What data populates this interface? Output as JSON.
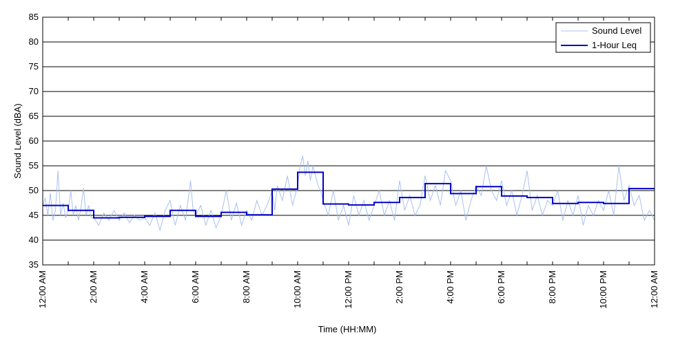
{
  "chart_data": {
    "type": "line",
    "xlabel": "Time (HH:MM)",
    "ylabel": "Sound Level (dBA)",
    "ylim": [
      35,
      85
    ],
    "y_ticks": [
      35,
      40,
      45,
      50,
      55,
      60,
      65,
      70,
      75,
      80,
      85
    ],
    "xlim_hours": [
      0,
      24
    ],
    "x_tick_labels": [
      "12:00 AM",
      "2:00 AM",
      "4:00 AM",
      "6:00 AM",
      "8:00 AM",
      "10:00 AM",
      "12:00 PM",
      "2:00 PM",
      "4:00 PM",
      "6:00 PM",
      "8:00 PM",
      "10:00 PM",
      "12:00 AM"
    ],
    "grid": "horizontal",
    "legend_position": "top-right",
    "series": [
      {
        "name": "Sound Level",
        "color": "#a8c0f0",
        "style": "thin-noisy-line",
        "points_hours_db": [
          [
            0.0,
            47
          ],
          [
            0.1,
            48.5
          ],
          [
            0.2,
            45
          ],
          [
            0.3,
            49.5
          ],
          [
            0.4,
            44
          ],
          [
            0.5,
            46
          ],
          [
            0.6,
            54
          ],
          [
            0.7,
            45
          ],
          [
            0.8,
            47.5
          ],
          [
            0.9,
            44.5
          ],
          [
            1.0,
            46
          ],
          [
            1.1,
            50
          ],
          [
            1.2,
            45
          ],
          [
            1.3,
            47
          ],
          [
            1.4,
            44
          ],
          [
            1.5,
            46.5
          ],
          [
            1.6,
            50.5
          ],
          [
            1.7,
            45
          ],
          [
            1.8,
            47
          ],
          [
            1.9,
            44.5
          ],
          [
            2.0,
            44.5
          ],
          [
            2.2,
            43
          ],
          [
            2.4,
            45.5
          ],
          [
            2.6,
            44
          ],
          [
            2.8,
            46
          ],
          [
            3.0,
            44
          ],
          [
            3.2,
            45.5
          ],
          [
            3.4,
            43.5
          ],
          [
            3.6,
            45
          ],
          [
            3.8,
            44
          ],
          [
            4.0,
            44.5
          ],
          [
            4.2,
            43
          ],
          [
            4.4,
            45.5
          ],
          [
            4.6,
            42
          ],
          [
            4.8,
            46
          ],
          [
            5.0,
            48
          ],
          [
            5.1,
            45
          ],
          [
            5.2,
            43
          ],
          [
            5.4,
            47
          ],
          [
            5.6,
            44
          ],
          [
            5.8,
            52
          ],
          [
            5.9,
            46
          ],
          [
            6.0,
            45
          ],
          [
            6.2,
            47
          ],
          [
            6.4,
            43
          ],
          [
            6.6,
            46
          ],
          [
            6.8,
            42.5
          ],
          [
            7.0,
            45
          ],
          [
            7.2,
            50
          ],
          [
            7.4,
            44
          ],
          [
            7.6,
            47.5
          ],
          [
            7.8,
            43
          ],
          [
            8.0,
            46
          ],
          [
            8.2,
            44
          ],
          [
            8.4,
            48
          ],
          [
            8.6,
            45
          ],
          [
            8.8,
            47
          ],
          [
            9.0,
            50
          ],
          [
            9.1,
            46
          ],
          [
            9.2,
            51
          ],
          [
            9.4,
            48
          ],
          [
            9.6,
            53
          ],
          [
            9.8,
            47
          ],
          [
            10.0,
            51
          ],
          [
            10.1,
            55
          ],
          [
            10.2,
            57
          ],
          [
            10.3,
            53
          ],
          [
            10.4,
            56
          ],
          [
            10.5,
            52
          ],
          [
            10.6,
            55
          ],
          [
            10.7,
            53
          ],
          [
            10.8,
            51
          ],
          [
            10.9,
            50
          ],
          [
            11.0,
            48
          ],
          [
            11.2,
            45
          ],
          [
            11.4,
            50
          ],
          [
            11.6,
            44
          ],
          [
            11.8,
            47
          ],
          [
            12.0,
            43
          ],
          [
            12.2,
            49
          ],
          [
            12.4,
            45
          ],
          [
            12.6,
            48
          ],
          [
            12.8,
            44
          ],
          [
            13.0,
            47
          ],
          [
            13.2,
            50
          ],
          [
            13.4,
            45
          ],
          [
            13.6,
            48
          ],
          [
            13.8,
            44
          ],
          [
            14.0,
            52
          ],
          [
            14.2,
            46
          ],
          [
            14.4,
            49
          ],
          [
            14.6,
            45
          ],
          [
            14.8,
            47
          ],
          [
            15.0,
            53
          ],
          [
            15.2,
            48
          ],
          [
            15.4,
            51
          ],
          [
            15.6,
            47
          ],
          [
            15.8,
            54
          ],
          [
            16.0,
            52
          ],
          [
            16.2,
            47
          ],
          [
            16.4,
            50
          ],
          [
            16.6,
            44
          ],
          [
            16.8,
            48
          ],
          [
            17.0,
            51
          ],
          [
            17.2,
            49
          ],
          [
            17.4,
            55
          ],
          [
            17.6,
            50
          ],
          [
            17.8,
            48
          ],
          [
            18.0,
            52
          ],
          [
            18.2,
            47
          ],
          [
            18.4,
            50
          ],
          [
            18.6,
            45
          ],
          [
            18.8,
            49
          ],
          [
            19.0,
            54
          ],
          [
            19.2,
            46
          ],
          [
            19.4,
            49
          ],
          [
            19.6,
            45
          ],
          [
            19.8,
            48
          ],
          [
            20.0,
            47
          ],
          [
            20.2,
            50
          ],
          [
            20.4,
            44
          ],
          [
            20.6,
            48
          ],
          [
            20.8,
            45
          ],
          [
            21.0,
            49
          ],
          [
            21.2,
            43
          ],
          [
            21.4,
            47
          ],
          [
            21.6,
            45
          ],
          [
            21.8,
            48
          ],
          [
            22.0,
            46
          ],
          [
            22.2,
            50
          ],
          [
            22.4,
            45
          ],
          [
            22.6,
            55
          ],
          [
            22.8,
            48
          ],
          [
            23.0,
            51
          ],
          [
            23.2,
            47
          ],
          [
            23.4,
            49
          ],
          [
            23.6,
            44
          ],
          [
            23.8,
            46
          ],
          [
            24.0,
            44
          ]
        ]
      },
      {
        "name": "1-Hour Leq",
        "color": "#0000c8",
        "style": "step",
        "hourly_values": [
          47.0,
          46.0,
          44.5,
          44.6,
          44.8,
          46.0,
          44.8,
          45.6,
          45.1,
          50.3,
          53.7,
          47.3,
          47.1,
          47.6,
          48.6,
          51.4,
          49.4,
          50.8,
          48.9,
          48.6,
          47.4,
          47.6,
          47.4,
          50.4
        ]
      }
    ]
  }
}
